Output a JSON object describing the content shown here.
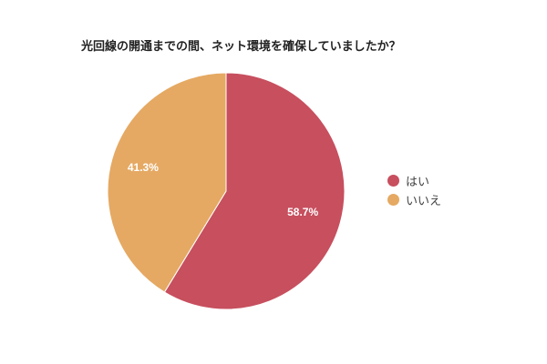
{
  "chart_data": {
    "type": "pie",
    "title": "光回線の開通までの間、ネット環境を確保していましたか？",
    "categories": [
      "はい",
      "いいえ"
    ],
    "values": [
      58.7,
      41.3
    ],
    "colors": [
      "#c74f5e",
      "#e5a963"
    ],
    "data_labels": [
      "58.7%",
      "41.3%"
    ],
    "legend_position": "right"
  },
  "legend": {
    "items": [
      {
        "label": "はい",
        "color": "#c74f5e"
      },
      {
        "label": "いいえ",
        "color": "#e5a963"
      }
    ]
  }
}
